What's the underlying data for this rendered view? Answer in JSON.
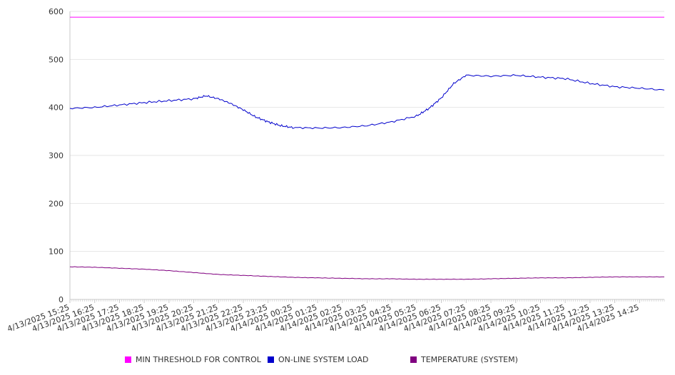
{
  "chart_data": {
    "type": "line",
    "title": "",
    "xlabel": "",
    "ylabel": "",
    "ylim": [
      0,
      600
    ],
    "y_ticks": [
      "0",
      "100",
      "200",
      "300",
      "400",
      "500",
      "600"
    ],
    "x_tick_labels": [
      "4/13/2025 15:25",
      "4/13/2025 16:25",
      "4/13/2025 17:25",
      "4/13/2025 18:25",
      "4/13/2025 19:25",
      "4/13/2025 20:25",
      "4/13/2025 21:25",
      "4/13/2025 22:25",
      "4/13/2025 23:25",
      "4/14/2025 00:25",
      "4/14/2025 01:25",
      "4/14/2025 02:25",
      "4/14/2025 03:25",
      "4/14/2025 04:25",
      "4/14/2025 05:25",
      "4/14/2025 06:25",
      "4/14/2025 07:25",
      "4/14/2025 08:25",
      "4/14/2025 09:25",
      "4/14/2025 10:25",
      "4/14/2025 11:25",
      "4/14/2025 12:25",
      "4/14/2025 13:25",
      "4/14/2025 14:25"
    ],
    "x_range": [
      "4/13/2025 15:25",
      "4/14/2025 15:25"
    ],
    "grid": true,
    "legend_position": "bottom",
    "series": [
      {
        "name": "MIN THRESHOLD FOR CONTROL",
        "color": "#ff00ff",
        "x": [
          "4/13/2025 15:25",
          "4/14/2025 15:25"
        ],
        "values": [
          588,
          588
        ]
      },
      {
        "name": "ON-LINE SYSTEM LOAD",
        "color": "#0000cc",
        "x": [
          "4/13/2025 15:25",
          "4/13/2025 16:25",
          "4/13/2025 17:25",
          "4/13/2025 18:25",
          "4/13/2025 19:25",
          "4/13/2025 20:25",
          "4/13/2025 20:55",
          "4/13/2025 21:25",
          "4/13/2025 21:55",
          "4/13/2025 22:25",
          "4/13/2025 22:55",
          "4/13/2025 23:25",
          "4/13/2025 23:55",
          "4/14/2025 00:25",
          "4/14/2025 01:25",
          "4/14/2025 02:25",
          "4/14/2025 03:25",
          "4/14/2025 04:25",
          "4/14/2025 05:25",
          "4/14/2025 05:55",
          "4/14/2025 06:25",
          "4/14/2025 06:55",
          "4/14/2025 07:25",
          "4/14/2025 08:25",
          "4/14/2025 09:25",
          "4/14/2025 10:25",
          "4/14/2025 11:25",
          "4/14/2025 12:25",
          "4/14/2025 13:25",
          "4/14/2025 14:25",
          "4/14/2025 15:25"
        ],
        "values": [
          398,
          400,
          405,
          410,
          414,
          418,
          424,
          418,
          408,
          395,
          380,
          370,
          362,
          358,
          357,
          358,
          362,
          370,
          382,
          398,
          420,
          450,
          467,
          465,
          467,
          463,
          460,
          450,
          443,
          440,
          436
        ]
      },
      {
        "name": "TEMPERATURE (SYSTEM)",
        "color": "#800080",
        "x": [
          "4/13/2025 15:25",
          "4/13/2025 16:25",
          "4/13/2025 17:25",
          "4/13/2025 18:25",
          "4/13/2025 19:25",
          "4/13/2025 20:25",
          "4/13/2025 21:25",
          "4/13/2025 22:25",
          "4/13/2025 23:25",
          "4/14/2025 00:25",
          "4/14/2025 01:25",
          "4/14/2025 02:25",
          "4/14/2025 03:25",
          "4/14/2025 04:25",
          "4/14/2025 05:25",
          "4/14/2025 06:25",
          "4/14/2025 07:25",
          "4/14/2025 08:25",
          "4/14/2025 09:25",
          "4/14/2025 10:25",
          "4/14/2025 11:25",
          "4/14/2025 12:25",
          "4/14/2025 13:25",
          "4/14/2025 14:25",
          "4/14/2025 15:25"
        ],
        "values": [
          68,
          67,
          65,
          63,
          60,
          56,
          52,
          50,
          48,
          46,
          45,
          44,
          43,
          43,
          42,
          42,
          42,
          43,
          44,
          45,
          45,
          46,
          47,
          47,
          47
        ]
      }
    ]
  }
}
